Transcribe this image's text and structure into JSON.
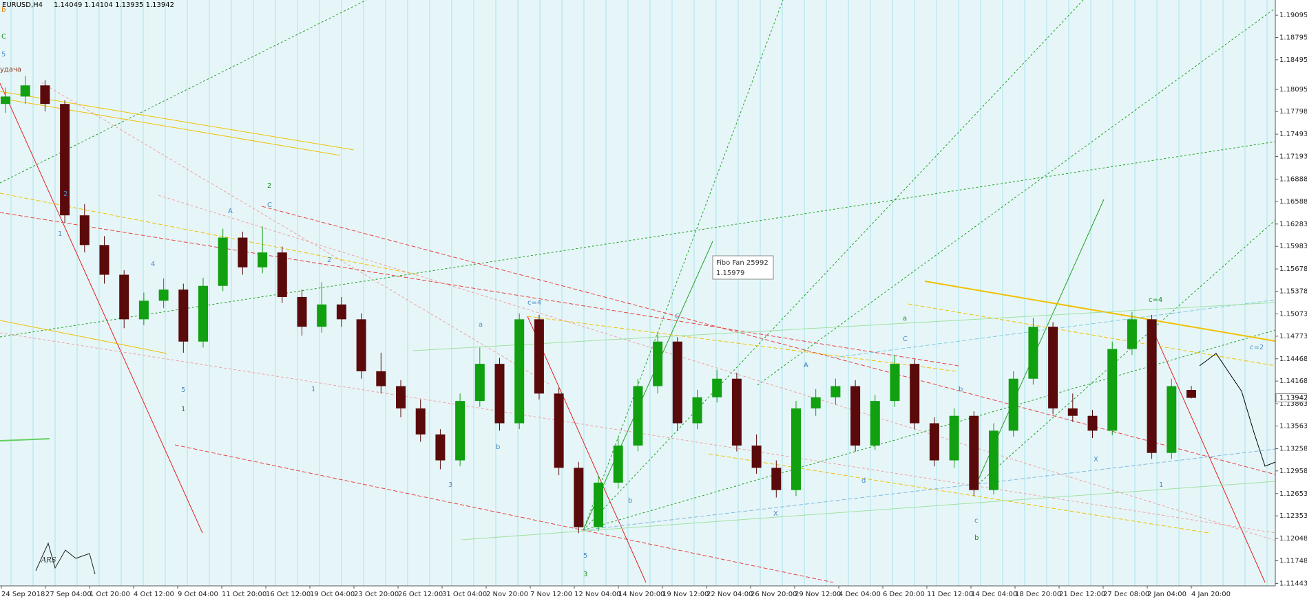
{
  "header": {
    "symbol": "EURUSD,H4",
    "quote": "1.14049 1.14104 1.13935 1.13942"
  },
  "chart_data": {
    "type": "candlestick",
    "up_color": "#10a010",
    "down_color": "#5a0a0a",
    "ylim": [
      1.1141,
      1.193
    ],
    "yticks": [
      1.19095,
      1.18795,
      1.18495,
      1.18095,
      1.17798,
      1.17493,
      1.17193,
      1.16888,
      1.16588,
      1.16283,
      1.15983,
      1.15678,
      1.15378,
      1.15073,
      1.14773,
      1.14468,
      1.14168,
      1.13863,
      1.13563,
      1.13258,
      1.12958,
      1.12653,
      1.12353,
      1.12048,
      1.11748,
      1.11443
    ],
    "last_price": 1.13942,
    "x_labels": [
      "24 Sep 2018",
      "27 Sep 04:00",
      "1 Oct 20:00",
      "4 Oct 12:00",
      "9 Oct 04:00",
      "11 Oct 20:00",
      "16 Oct 12:00",
      "19 Oct 04:00",
      "23 Oct 20:00",
      "26 Oct 12:00",
      "31 Oct 04:00",
      "2 Nov 20:00",
      "7 Nov 12:00",
      "12 Nov 04:00",
      "14 Nov 20:00",
      "19 Nov 12:00",
      "22 Nov 04:00",
      "26 Nov 20:00",
      "29 Nov 12:00",
      "4 Dec 04:00",
      "6 Dec 20:00",
      "11 Dec 12:00",
      "14 Dec 04:00",
      "18 Dec 20:00",
      "21 Dec 12:00",
      "27 Dec 08:00",
      "2 Jan 04:00",
      "4 Jan 20:00"
    ],
    "ohlc": [
      [
        1.179,
        1.1812,
        1.1778,
        1.18
      ],
      [
        1.18,
        1.1828,
        1.179,
        1.1815
      ],
      [
        1.1815,
        1.1822,
        1.178,
        1.179
      ],
      [
        1.179,
        1.1795,
        1.163,
        1.164
      ],
      [
        1.164,
        1.1655,
        1.159,
        1.16
      ],
      [
        1.16,
        1.1612,
        1.1548,
        1.156
      ],
      [
        1.156,
        1.1566,
        1.1488,
        1.15
      ],
      [
        1.15,
        1.1536,
        1.1492,
        1.1525
      ],
      [
        1.1525,
        1.1555,
        1.1515,
        1.154
      ],
      [
        1.154,
        1.1548,
        1.1455,
        1.147
      ],
      [
        1.147,
        1.1556,
        1.1462,
        1.1545
      ],
      [
        1.1545,
        1.1622,
        1.1538,
        1.161
      ],
      [
        1.161,
        1.1618,
        1.156,
        1.157
      ],
      [
        1.157,
        1.1625,
        1.1562,
        1.159
      ],
      [
        1.159,
        1.1598,
        1.1522,
        1.153
      ],
      [
        1.153,
        1.154,
        1.1478,
        1.149
      ],
      [
        1.149,
        1.155,
        1.1482,
        1.152
      ],
      [
        1.152,
        1.153,
        1.149,
        1.15
      ],
      [
        1.15,
        1.1508,
        1.142,
        1.143
      ],
      [
        1.143,
        1.1455,
        1.14,
        1.141
      ],
      [
        1.141,
        1.1418,
        1.1368,
        1.138
      ],
      [
        1.138,
        1.1392,
        1.1335,
        1.1345
      ],
      [
        1.1345,
        1.1352,
        1.1298,
        1.131
      ],
      [
        1.131,
        1.14,
        1.1302,
        1.139
      ],
      [
        1.139,
        1.1462,
        1.1382,
        1.144
      ],
      [
        1.144,
        1.1448,
        1.135,
        1.136
      ],
      [
        1.136,
        1.1508,
        1.1352,
        1.15
      ],
      [
        1.15,
        1.1506,
        1.1392,
        1.14
      ],
      [
        1.14,
        1.1408,
        1.129,
        1.13
      ],
      [
        1.13,
        1.1308,
        1.1212,
        1.122
      ],
      [
        1.122,
        1.129,
        1.1215,
        1.128
      ],
      [
        1.128,
        1.1342,
        1.1272,
        1.133
      ],
      [
        1.133,
        1.142,
        1.1322,
        1.141
      ],
      [
        1.141,
        1.1482,
        1.14,
        1.147
      ],
      [
        1.147,
        1.1476,
        1.135,
        1.136
      ],
      [
        1.136,
        1.1405,
        1.1352,
        1.1395
      ],
      [
        1.1395,
        1.1432,
        1.1388,
        1.142
      ],
      [
        1.142,
        1.1428,
        1.1322,
        1.133
      ],
      [
        1.133,
        1.1345,
        1.1292,
        1.13
      ],
      [
        1.13,
        1.131,
        1.126,
        1.127
      ],
      [
        1.127,
        1.139,
        1.1262,
        1.138
      ],
      [
        1.138,
        1.1406,
        1.137,
        1.1395
      ],
      [
        1.1395,
        1.142,
        1.1385,
        1.141
      ],
      [
        1.141,
        1.1418,
        1.1322,
        1.133
      ],
      [
        1.133,
        1.1398,
        1.1324,
        1.139
      ],
      [
        1.139,
        1.1452,
        1.1382,
        1.144
      ],
      [
        1.144,
        1.1446,
        1.1352,
        1.136
      ],
      [
        1.136,
        1.1368,
        1.1302,
        1.131
      ],
      [
        1.131,
        1.138,
        1.13,
        1.137
      ],
      [
        1.137,
        1.1376,
        1.1262,
        1.127
      ],
      [
        1.127,
        1.136,
        1.1264,
        1.135
      ],
      [
        1.135,
        1.143,
        1.1342,
        1.142
      ],
      [
        1.142,
        1.1502,
        1.1412,
        1.149
      ],
      [
        1.149,
        1.1496,
        1.1372,
        1.138
      ],
      [
        1.138,
        1.14,
        1.1362,
        1.137
      ],
      [
        1.137,
        1.1378,
        1.134,
        1.135
      ],
      [
        1.135,
        1.147,
        1.1344,
        1.146
      ],
      [
        1.146,
        1.151,
        1.1452,
        1.15
      ],
      [
        1.15,
        1.1506,
        1.1312,
        1.132
      ],
      [
        1.132,
        1.142,
        1.1312,
        1.141
      ],
      [
        1.14049,
        1.14104,
        1.13935,
        1.13942
      ]
    ],
    "annotations": [
      {
        "text": "b",
        "color": "#e08000"
      },
      {
        "text": "C",
        "color": "#1a8a1a"
      },
      {
        "text": "5",
        "color": "#4a8ac8"
      },
      {
        "text": "удача",
        "color": "#8a3a1a"
      },
      {
        "text": "2",
        "color": "#1a8a1a"
      },
      {
        "text": "C",
        "color": "#4a8ac8"
      },
      {
        "text": "A",
        "color": "#4a8ac8"
      },
      {
        "text": "1",
        "color": "#1a8a1a"
      },
      {
        "text": "5",
        "color": "#4a8ac8"
      },
      {
        "text": "3",
        "color": "#4a8ac8"
      },
      {
        "text": "3",
        "color": "#1a8a1a"
      },
      {
        "text": "5",
        "color": "#4a8ac8"
      },
      {
        "text": "c=4",
        "color": "#4a8ac8"
      },
      {
        "text": "C",
        "color": "#4a8ac8"
      },
      {
        "text": "A",
        "color": "#4a8ac8"
      },
      {
        "text": "a",
        "color": "#1a8a1a"
      },
      {
        "text": "C",
        "color": "#4a8ac8"
      },
      {
        "text": "A",
        "color": "#4a8ac8"
      },
      {
        "text": "b",
        "color": "#1a8a1a"
      },
      {
        "text": "c",
        "color": "#4a8ac8"
      },
      {
        "text": "c=4",
        "color": "#1a8a1a"
      },
      {
        "text": "c=2",
        "color": "#4a8ac8"
      },
      {
        "text": "1",
        "color": "#4a8ac8"
      },
      {
        "text": "X",
        "color": "#4a8ac8"
      },
      {
        "text": "X",
        "color": "#4a8ac8"
      },
      {
        "text": "4",
        "color": "#4a8ac8"
      },
      {
        "text": "2",
        "color": "#4a8ac8"
      },
      {
        "text": "1",
        "color": "#4a8ac8"
      },
      {
        "text": "2",
        "color": "#4a8ac8"
      },
      {
        "text": "1",
        "color": "#4a8ac8"
      },
      {
        "text": "a",
        "color": "#4a8ac8"
      },
      {
        "text": "b",
        "color": "#4a8ac8"
      },
      {
        "text": "b",
        "color": "#4a8ac8"
      },
      {
        "text": "d",
        "color": "#4a8ac8"
      },
      {
        "text": "b",
        "color": "#4a8ac8"
      }
    ],
    "tooltip": [
      "Fibo Fan 25992",
      "1.15979"
    ],
    "signature": "ARS"
  }
}
